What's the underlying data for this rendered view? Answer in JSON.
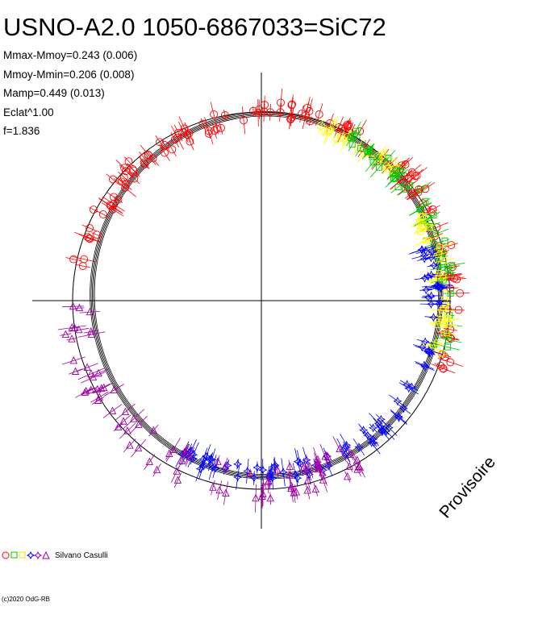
{
  "header": {
    "title": "USNO-A2.0 1050-6867033=SiC72",
    "stats": [
      "Mmax-Mmoy=0.243 (0.006)",
      "Mmoy-Mmin=0.206 (0.008)",
      "Mamp=0.449 (0.013)",
      "Eclat^1.00",
      "f=1.836"
    ]
  },
  "watermark": "Provisoire",
  "legend": {
    "observer": "Silvano Casulli",
    "symbols": [
      "circle",
      "square",
      "square",
      "star",
      "star",
      "triangle"
    ]
  },
  "copyright": "(c)2020 OdG-RB",
  "chart_data": {
    "type": "scatter",
    "projection": "polar",
    "title": "USNO-A2.0 1050-6867033=SiC72",
    "colors": {
      "red": "#ff0000",
      "green": "#00c800",
      "yellow": "#ffff00",
      "blue": "#0000ff",
      "purple": "#a000a0",
      "axes": "#000000"
    },
    "series": [
      {
        "color": "red",
        "symbol": "circle",
        "phase_range": [
          0.0,
          0.31
        ],
        "amplitude_offset": [
          0.11,
          0.2
        ]
      },
      {
        "color": "yellow",
        "symbol": "circle",
        "phase_range": [
          0.05,
          0.13
        ],
        "amplitude_offset": [
          0.08,
          0.15
        ]
      },
      {
        "color": "green",
        "symbol": "square",
        "phase_range": [
          0.08,
          0.29
        ],
        "amplitude_offset": [
          0.08,
          0.17
        ]
      },
      {
        "color": "yellow",
        "symbol": "square",
        "phase_range": [
          0.16,
          0.3
        ],
        "amplitude_offset": [
          0.05,
          0.14
        ]
      },
      {
        "color": "blue",
        "symbol": "star",
        "phase_range": [
          0.2,
          0.58
        ],
        "amplitude_offset": [
          0.01,
          0.1
        ]
      },
      {
        "color": "purple",
        "symbol": "triangle",
        "phase_range": [
          0.41,
          0.75
        ],
        "amplitude_offset": [
          0.02,
          0.2
        ]
      },
      {
        "color": "red",
        "symbol": "circle",
        "phase_range": [
          0.78,
          1.0
        ],
        "amplitude_offset": [
          0.06,
          0.16
        ]
      }
    ],
    "fit_curves": 5,
    "reference_circle": true
  }
}
